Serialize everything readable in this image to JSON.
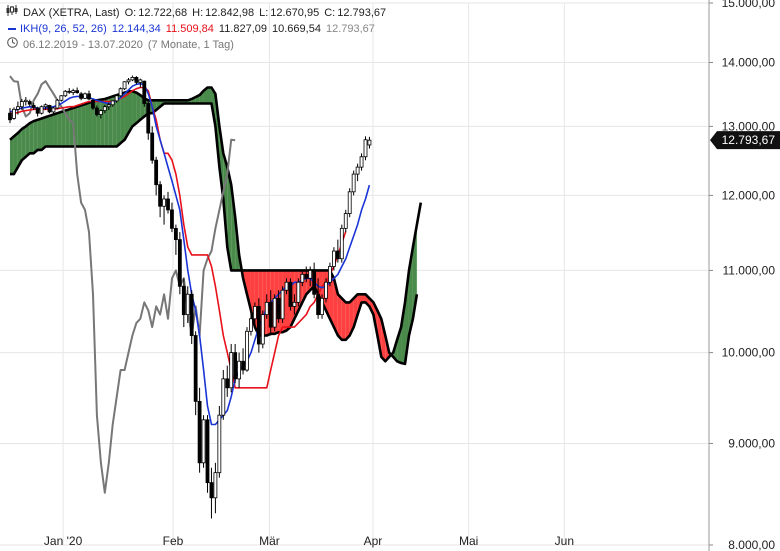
{
  "legend": {
    "icon": "candlestick-icon",
    "title": "DAX (XETRA, Last)",
    "o_label": "O:",
    "o_value": "12.722,68",
    "h_label": "H:",
    "h_value": "12.842,98",
    "l_label": "L:",
    "l_value": "12.670,95",
    "c_label": "C:",
    "c_value": "12.793,67",
    "ikh_label": "IKH(9, 26, 52, 26)",
    "ikh_v1": "12.144,34",
    "ikh_v2": "11.509,84",
    "ikh_v3": "11.827,09",
    "ikh_v4": "10.669,54",
    "ikh_v5": "12.793,67",
    "range_icon": "clock-icon",
    "range_text": "06.12.2019 - 13.07.2020",
    "range_note": "(7 Monate, 1 Tag)"
  },
  "colors": {
    "tenkan": "#1a35d6",
    "kijun": "#e8101a",
    "chikou": "#777777",
    "senkou": "#000000",
    "cloud_bull": "#4a8a4a",
    "cloud_bear": "#ff4040",
    "candle_up": "#ffffff",
    "candle_down": "#000000",
    "price_label_bg": "#111111"
  },
  "chart_data": {
    "type": "candlestick",
    "title": "DAX (XETRA, Last)",
    "y_scale": "log",
    "ylim": [
      8000,
      15000
    ],
    "y_ticks": [
      {
        "value": 8000,
        "label": "8.000,00"
      },
      {
        "value": 9000,
        "label": "9.000,00"
      },
      {
        "value": 10000,
        "label": "10.000,00"
      },
      {
        "value": 11000,
        "label": "11.000,00"
      },
      {
        "value": 12000,
        "label": "12.000,00"
      },
      {
        "value": 13000,
        "label": "13.000,00"
      },
      {
        "value": 14000,
        "label": "14.000,00"
      },
      {
        "value": 15000,
        "label": "15.000,00"
      }
    ],
    "x_ticks": [
      {
        "label": "Jan '20",
        "pos": 0.089
      },
      {
        "label": "Feb",
        "pos": 0.244
      },
      {
        "label": "Mär",
        "pos": 0.38
      },
      {
        "label": "Apr",
        "pos": 0.526
      },
      {
        "label": "Mai",
        "pos": 0.661
      },
      {
        "label": "Jun",
        "pos": 0.796
      }
    ],
    "last_price": {
      "value": 12793.67,
      "label": "12.793,67"
    },
    "candles": [
      [
        13200,
        13280,
        13050,
        13100
      ],
      [
        13120,
        13290,
        13100,
        13260
      ],
      [
        13260,
        13380,
        13180,
        13300
      ],
      [
        13300,
        13420,
        13250,
        13380
      ],
      [
        13380,
        13450,
        13320,
        13400
      ],
      [
        13380,
        13410,
        13300,
        13340
      ],
      [
        13320,
        13360,
        13250,
        13290
      ],
      [
        13280,
        13300,
        13150,
        13200
      ],
      [
        13200,
        13320,
        13180,
        13300
      ],
      [
        13300,
        13350,
        13250,
        13330
      ],
      [
        13320,
        13330,
        13200,
        13220
      ],
      [
        13220,
        13300,
        13180,
        13280
      ],
      [
        13280,
        13420,
        13260,
        13400
      ],
      [
        13400,
        13480,
        13380,
        13470
      ],
      [
        13470,
        13560,
        13450,
        13540
      ],
      [
        13540,
        13590,
        13500,
        13530
      ],
      [
        13520,
        13580,
        13480,
        13550
      ],
      [
        13550,
        13600,
        13500,
        13520
      ],
      [
        13500,
        13530,
        13400,
        13430
      ],
      [
        13430,
        13520,
        13420,
        13500
      ],
      [
        13500,
        13550,
        13400,
        13420
      ],
      [
        13400,
        13420,
        13250,
        13280
      ],
      [
        13280,
        13320,
        13150,
        13180
      ],
      [
        13180,
        13260,
        13120,
        13240
      ],
      [
        13240,
        13330,
        13200,
        13300
      ],
      [
        13300,
        13360,
        13250,
        13330
      ],
      [
        13330,
        13400,
        13300,
        13390
      ],
      [
        13390,
        13480,
        13360,
        13470
      ],
      [
        13470,
        13600,
        13450,
        13580
      ],
      [
        13580,
        13700,
        13560,
        13690
      ],
      [
        13690,
        13750,
        13650,
        13720
      ],
      [
        13720,
        13790,
        13700,
        13760
      ],
      [
        13760,
        13780,
        13650,
        13680
      ],
      [
        13680,
        13740,
        13600,
        13720
      ],
      [
        13700,
        13710,
        13300,
        13350
      ],
      [
        13350,
        13380,
        12800,
        12900
      ],
      [
        12900,
        13000,
        12450,
        12500
      ],
      [
        12500,
        12550,
        12000,
        12150
      ],
      [
        12150,
        12200,
        11700,
        11850
      ],
      [
        11850,
        12000,
        11600,
        11950
      ],
      [
        11950,
        12050,
        11750,
        11800
      ],
      [
        11800,
        11900,
        11500,
        11550
      ],
      [
        11550,
        11600,
        11200,
        11400
      ],
      [
        11400,
        11500,
        10700,
        10800
      ],
      [
        10800,
        10900,
        10300,
        10450
      ],
      [
        10450,
        10800,
        10350,
        10700
      ],
      [
        10700,
        10750,
        10100,
        10200
      ],
      [
        10200,
        10250,
        9300,
        9450
      ],
      [
        9450,
        9600,
        8700,
        8800
      ],
      [
        8800,
        9300,
        8750,
        9250
      ],
      [
        9250,
        9300,
        8500,
        8600
      ],
      [
        8600,
        8750,
        8250,
        8450
      ],
      [
        8450,
        8800,
        8300,
        8700
      ],
      [
        8700,
        9400,
        8650,
        9300
      ],
      [
        9300,
        9800,
        9250,
        9700
      ],
      [
        9700,
        9850,
        9500,
        9600
      ],
      [
        9600,
        10100,
        9550,
        10000
      ],
      [
        10000,
        10100,
        9650,
        9700
      ],
      [
        9700,
        10000,
        9600,
        9900
      ],
      [
        9900,
        10050,
        9750,
        9800
      ],
      [
        9800,
        10300,
        9780,
        10250
      ],
      [
        10250,
        10500,
        10200,
        10400
      ],
      [
        10400,
        10600,
        10300,
        10550
      ],
      [
        10550,
        10650,
        10000,
        10100
      ],
      [
        10100,
        10500,
        10050,
        10450
      ],
      [
        10450,
        10700,
        10400,
        10600
      ],
      [
        10600,
        10750,
        10200,
        10300
      ],
      [
        10300,
        10700,
        10250,
        10650
      ],
      [
        10650,
        10750,
        10350,
        10400
      ],
      [
        10400,
        10800,
        10350,
        10750
      ],
      [
        10750,
        10900,
        10700,
        10850
      ],
      [
        10850,
        10900,
        10500,
        10550
      ],
      [
        10550,
        10700,
        10450,
        10600
      ],
      [
        10600,
        10900,
        10550,
        10850
      ],
      [
        10850,
        11000,
        10800,
        10950
      ],
      [
        10950,
        11050,
        10850,
        10900
      ],
      [
        10900,
        11050,
        10800,
        11000
      ],
      [
        11000,
        11100,
        10650,
        10700
      ],
      [
        10700,
        10900,
        10400,
        10450
      ],
      [
        10450,
        10700,
        10400,
        10650
      ],
      [
        10650,
        10900,
        10600,
        10850
      ],
      [
        10850,
        11100,
        10800,
        11050
      ],
      [
        11050,
        11300,
        11000,
        11250
      ],
      [
        11250,
        11400,
        11100,
        11150
      ],
      [
        11150,
        11600,
        11100,
        11550
      ],
      [
        11550,
        11800,
        11500,
        11750
      ],
      [
        11750,
        12100,
        11700,
        12050
      ],
      [
        12050,
        12350,
        12000,
        12300
      ],
      [
        12300,
        12450,
        12200,
        12400
      ],
      [
        12400,
        12600,
        12350,
        12550
      ],
      [
        12550,
        12850,
        12500,
        12800
      ],
      [
        12722.68,
        12842.98,
        12670.95,
        12793.67
      ]
    ],
    "series": [
      {
        "name": "IKH(9, 26, 52, 26)",
        "role": "tenkan",
        "values": [
          13220,
          13240,
          13260,
          13280,
          13290,
          13300,
          13290,
          13280,
          13270,
          13280,
          13290,
          13300,
          13320,
          13350,
          13390,
          13430,
          13450,
          13460,
          13460,
          13450,
          13440,
          13420,
          13400,
          13380,
          13360,
          13350,
          13370,
          13400,
          13440,
          13500,
          13560,
          13620,
          13650,
          13660,
          13640,
          13500,
          13300,
          13000,
          12800,
          12600,
          12400,
          12200,
          12000,
          11800,
          11400,
          11000,
          10700,
          10500,
          10200,
          9800,
          9400,
          9200,
          9200,
          9250,
          9300,
          9350,
          9500,
          9700,
          9800,
          9850,
          9900,
          10000,
          10150,
          10300,
          10400,
          10550,
          10600,
          10650,
          10700,
          10750,
          10800,
          10800,
          10850,
          10850,
          10880,
          10900,
          10900,
          10850,
          10800,
          10780,
          10800,
          10850,
          10900,
          10950,
          11050,
          11150,
          11300,
          11450,
          11600,
          11800,
          11950,
          12144.34
        ]
      },
      {
        "name": "Kijun",
        "role": "kijun",
        "values": [
          13200,
          13200,
          13210,
          13230,
          13240,
          13250,
          13260,
          13260,
          13260,
          13260,
          13260,
          13260,
          13270,
          13280,
          13290,
          13300,
          13300,
          13320,
          13340,
          13360,
          13380,
          13380,
          13380,
          13380,
          13380,
          13380,
          13380,
          13400,
          13430,
          13460,
          13500,
          13550,
          13580,
          13600,
          13600,
          13550,
          13300,
          13100,
          12800,
          12600,
          12600,
          12500,
          12300,
          12000,
          11600,
          11300,
          11200,
          11200,
          11200,
          11200,
          11200,
          11050,
          10800,
          10500,
          10200,
          10000,
          9800,
          9600,
          9600,
          9600,
          9600,
          9600,
          9600,
          9600,
          9600,
          9600,
          9800,
          10000,
          10200,
          10300,
          10300,
          10300,
          10300,
          10350,
          10400,
          10450,
          10550,
          10600,
          10700,
          10800,
          10850,
          10950,
          11050,
          11200,
          11350,
          11509.84
        ]
      },
      {
        "name": "Chikou",
        "role": "chikou",
        "values": [
          13780,
          13700,
          13690,
          13300,
          13150,
          13200,
          13400,
          13500,
          13650,
          13700,
          13600,
          13500,
          13400,
          13300,
          13200,
          13100,
          13050,
          12300,
          11900,
          11800,
          11500,
          10700,
          9300,
          8800,
          8500,
          8800,
          9200,
          9500,
          9800,
          9800,
          10000,
          10200,
          10350,
          10400,
          10600,
          10500,
          10300,
          10550,
          10450,
          10700,
          10400,
          10900,
          11000,
          10800,
          10900,
          10500,
          10200,
          10550,
          10200,
          11000,
          11150,
          11250,
          11550,
          11800,
          12050,
          12300,
          12800,
          12793.67
        ]
      },
      {
        "name": "Senkou A",
        "role": "senkou_a",
        "values": [
          12800,
          12850,
          12900,
          12960,
          13000,
          13050,
          13080,
          13100,
          13120,
          13140,
          13160,
          13180,
          13200,
          13220,
          13240,
          13260,
          13280,
          13300,
          13320,
          13340,
          13360,
          13380,
          13400,
          13410,
          13420,
          13440,
          13460,
          13480,
          13500,
          13520,
          13540,
          13540,
          13520,
          13480,
          13430,
          13400,
          13400,
          13400,
          13400,
          13400,
          13400,
          13400,
          13400,
          13400,
          13400,
          13400,
          13420,
          13450,
          13480,
          13550,
          13600,
          13600,
          13500,
          13000,
          12600,
          12400,
          12150,
          11700,
          11200,
          10900,
          10700,
          10500,
          10300,
          10200,
          10200,
          10200,
          10220,
          10220,
          10240,
          10240,
          10260,
          10300,
          10400,
          10500,
          10600,
          10700,
          10750,
          10800,
          10700,
          10600,
          10500,
          10400,
          10300,
          10200,
          10150,
          10150,
          10200,
          10300,
          10450,
          10600,
          10600,
          10550,
          10450,
          10200,
          9950,
          9900,
          9950,
          10000,
          10150,
          10300,
          10600,
          11000,
          11300,
          11600,
          11900
        ]
      },
      {
        "name": "Senkou B",
        "role": "senkou_b",
        "values": [
          12300,
          12300,
          12400,
          12500,
          12550,
          12600,
          12600,
          12650,
          12650,
          12700,
          12700,
          12700,
          12700,
          12700,
          12700,
          12700,
          12700,
          12700,
          12700,
          12700,
          12700,
          12700,
          12700,
          12700,
          12700,
          12700,
          12700,
          12700,
          12750,
          12800,
          12900,
          13000,
          13050,
          13100,
          13150,
          13200,
          13200,
          13250,
          13300,
          13350,
          13350,
          13350,
          13350,
          13350,
          13350,
          13350,
          13350,
          13350,
          13350,
          13350,
          13350,
          13350,
          13000,
          12400,
          11950,
          11300,
          11000,
          11000,
          11000,
          11000,
          11000,
          11000,
          11000,
          11000,
          11000,
          11000,
          11000,
          11000,
          11000,
          11000,
          11000,
          11000,
          11000,
          11000,
          11000,
          11000,
          11000,
          11000,
          11000,
          11000,
          11000,
          11000,
          10900,
          10700,
          10650,
          10600,
          10600,
          10650,
          10700,
          10700,
          10700,
          10650,
          10600,
          10500,
          10400,
          10200,
          10000,
          9950,
          9900,
          9880,
          9870,
          10200,
          10400,
          10700
        ]
      }
    ]
  }
}
